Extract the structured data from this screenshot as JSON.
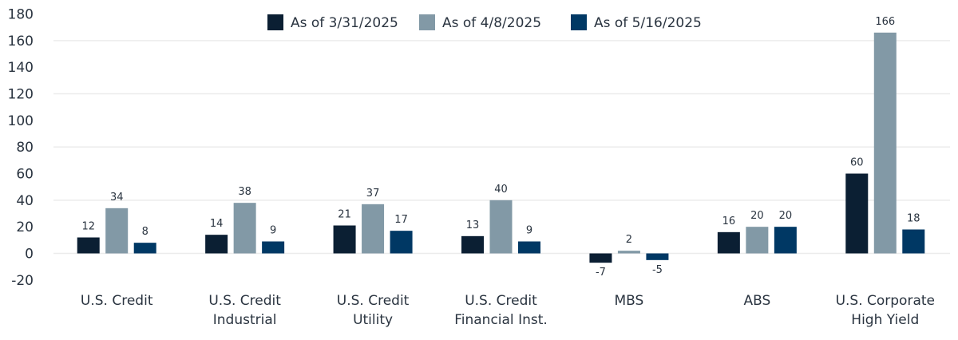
{
  "chart_data": {
    "type": "bar",
    "categories": [
      [
        "U.S. Credit"
      ],
      [
        "U.S. Credit",
        "Industrial"
      ],
      [
        "U.S. Credit",
        "Utility"
      ],
      [
        "U.S. Credit",
        "Financial Inst."
      ],
      [
        "MBS"
      ],
      [
        "ABS"
      ],
      [
        "U.S. Corporate",
        "High Yield"
      ]
    ],
    "series": [
      {
        "name": "As of 3/31/2025",
        "color": "#0b1f33",
        "values": [
          12,
          14,
          21,
          13,
          -7,
          16,
          60
        ]
      },
      {
        "name": "As of 4/8/2025",
        "color": "#8299a6",
        "values": [
          34,
          38,
          37,
          40,
          2,
          20,
          166
        ]
      },
      {
        "name": "As of 5/16/2025",
        "color": "#003864",
        "values": [
          8,
          9,
          17,
          9,
          -5,
          20,
          18
        ]
      }
    ],
    "yticks": [
      180,
      160,
      140,
      120,
      100,
      80,
      60,
      40,
      20,
      0,
      -20
    ],
    "ylim": [
      -20,
      180
    ],
    "gridlines": [
      160,
      120,
      80,
      40,
      0
    ],
    "legend_position": "top-center",
    "title": "",
    "xlabel": "",
    "ylabel": ""
  }
}
